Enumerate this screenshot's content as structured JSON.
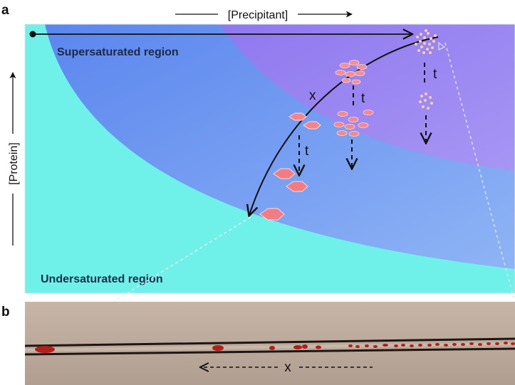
{
  "panel_a": {
    "letter": "a",
    "x_axis_label": "[Precipitant]",
    "y_axis_label": "[Protein]",
    "supersaturated_label": "Supersaturated region",
    "undersaturated_label": "Undersaturated region",
    "path_label": "x",
    "time_label": "t",
    "colors": {
      "undersaturated": "#6ef0e8",
      "supersaturated": "#6a9cf0",
      "precipitation": "#9b86f2",
      "crystal": "#f07a80"
    }
  },
  "panel_b": {
    "letter": "b",
    "distance_label": "x",
    "colors": {
      "background": "#b9a79a",
      "capillary": "#1a1410",
      "crystal": "#b52018"
    }
  }
}
